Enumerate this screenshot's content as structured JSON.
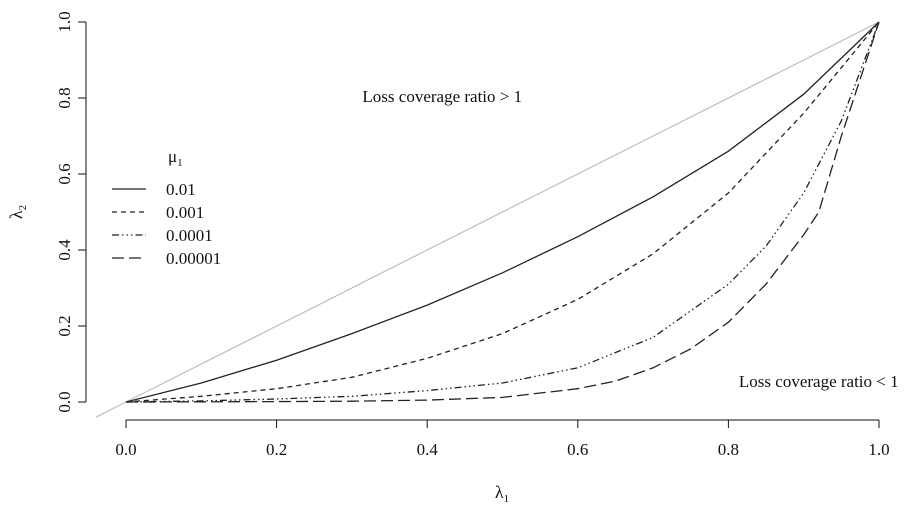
{
  "chart_data": {
    "type": "line",
    "xlabel": "λ",
    "xlabel_sub": "1",
    "ylabel": "λ",
    "ylabel_sub": "2",
    "xlim": [
      0,
      1
    ],
    "ylim": [
      0,
      1
    ],
    "x_ticks": [
      "0.0",
      "0.2",
      "0.4",
      "0.6",
      "0.8",
      "1.0"
    ],
    "y_ticks": [
      "0.0",
      "0.2",
      "0.4",
      "0.6",
      "0.8",
      "1.0"
    ],
    "grid": false,
    "reference_line": {
      "x": [
        0,
        1
      ],
      "y": [
        0,
        1
      ],
      "color": "#bdbdbd"
    },
    "annotations": [
      {
        "text": "Loss coverage ratio > 1",
        "x": 0.42,
        "y": 0.805
      },
      {
        "text": "Loss coverage ratio < 1",
        "x": 0.92,
        "y": 0.055
      }
    ],
    "legend": {
      "title": "μ",
      "title_sub": "1",
      "position": "left-middle"
    },
    "series": [
      {
        "name": "0.01",
        "dash": "none",
        "x": [
          0,
          0.1,
          0.2,
          0.3,
          0.4,
          0.5,
          0.6,
          0.7,
          0.8,
          0.9,
          1.0
        ],
        "y": [
          0,
          0.05,
          0.11,
          0.18,
          0.255,
          0.34,
          0.435,
          0.54,
          0.66,
          0.81,
          1.0
        ]
      },
      {
        "name": "0.001",
        "dash": "5,4",
        "x": [
          0,
          0.1,
          0.2,
          0.3,
          0.4,
          0.5,
          0.6,
          0.7,
          0.8,
          0.9,
          0.95,
          1.0
        ],
        "y": [
          0,
          0.015,
          0.035,
          0.065,
          0.115,
          0.18,
          0.27,
          0.39,
          0.55,
          0.76,
          0.88,
          1.0
        ]
      },
      {
        "name": "0.0001",
        "dash": "7,3,1.5,3,1.5,3,1.5,3",
        "x": [
          0,
          0.1,
          0.2,
          0.3,
          0.4,
          0.5,
          0.6,
          0.7,
          0.8,
          0.85,
          0.9,
          0.95,
          1.0
        ],
        "y": [
          0,
          0.003,
          0.008,
          0.015,
          0.03,
          0.05,
          0.09,
          0.17,
          0.31,
          0.41,
          0.55,
          0.74,
          1.0
        ]
      },
      {
        "name": "0.00001",
        "dash": "12,5",
        "x": [
          0,
          0.1,
          0.2,
          0.3,
          0.4,
          0.5,
          0.6,
          0.65,
          0.7,
          0.75,
          0.8,
          0.85,
          0.9,
          0.92,
          0.95,
          1.0
        ],
        "y": [
          0,
          0.0005,
          0.001,
          0.002,
          0.005,
          0.012,
          0.035,
          0.055,
          0.09,
          0.14,
          0.21,
          0.31,
          0.44,
          0.5,
          0.7,
          1.0
        ]
      }
    ]
  }
}
